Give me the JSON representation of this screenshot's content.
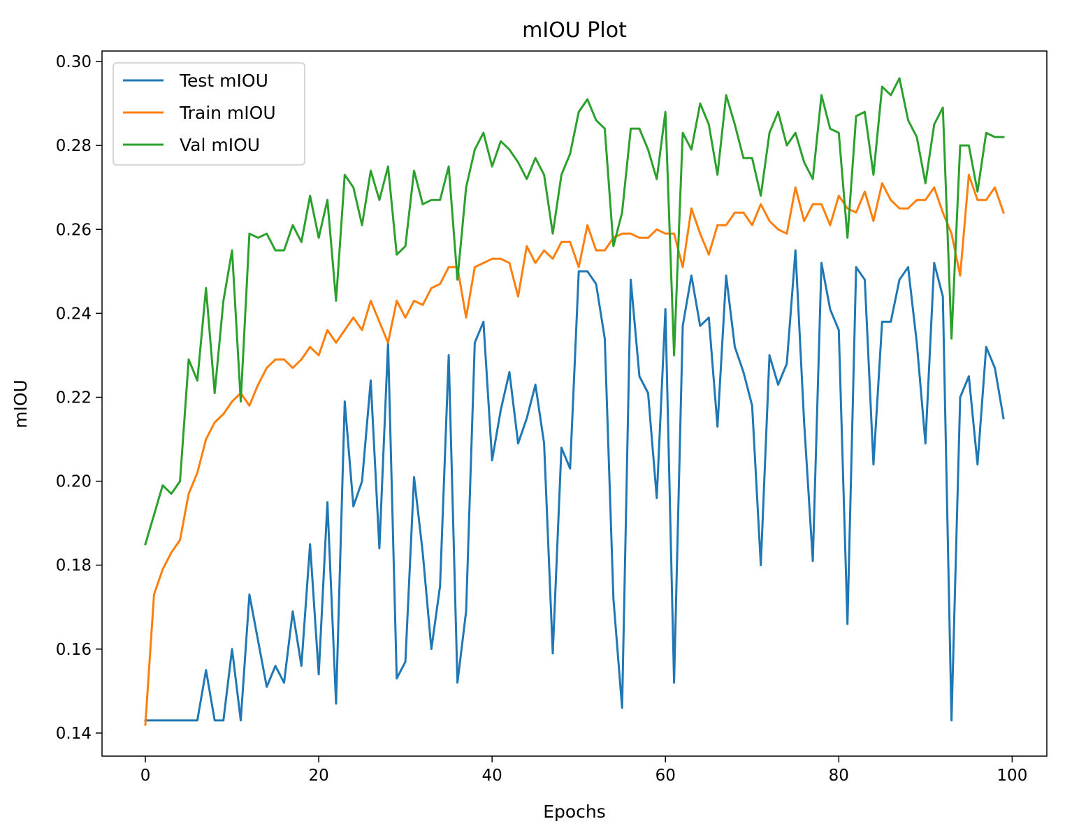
{
  "chart_data": {
    "type": "line",
    "title": "mIOU Plot",
    "xlabel": "Epochs",
    "ylabel": "mIOU",
    "xlim": [
      -5,
      104
    ],
    "ylim": [
      0.1345,
      0.3025
    ],
    "xticks": [
      0,
      20,
      40,
      60,
      80,
      100
    ],
    "yticks": [
      0.14,
      0.16,
      0.18,
      0.2,
      0.22,
      0.24,
      0.26,
      0.28,
      0.3
    ],
    "xtick_labels": [
      "0",
      "20",
      "40",
      "60",
      "80",
      "100"
    ],
    "ytick_labels": [
      "0.14",
      "0.16",
      "0.18",
      "0.20",
      "0.22",
      "0.24",
      "0.26",
      "0.28",
      "0.30"
    ],
    "grid": false,
    "legend": "upper-left",
    "series": [
      {
        "name": "Test mIOU",
        "color": "#1f77b4",
        "values": [
          0.143,
          0.143,
          0.143,
          0.143,
          0.143,
          0.143,
          0.143,
          0.155,
          0.143,
          0.143,
          0.16,
          0.143,
          0.173,
          0.162,
          0.151,
          0.156,
          0.152,
          0.169,
          0.156,
          0.185,
          0.154,
          0.195,
          0.147,
          0.219,
          0.194,
          0.2,
          0.224,
          0.184,
          0.233,
          0.153,
          0.157,
          0.201,
          0.183,
          0.16,
          0.175,
          0.23,
          0.152,
          0.169,
          0.233,
          0.238,
          0.205,
          0.217,
          0.226,
          0.209,
          0.215,
          0.223,
          0.209,
          0.159,
          0.208,
          0.203,
          0.25,
          0.25,
          0.247,
          0.234,
          0.172,
          0.146,
          0.248,
          0.225,
          0.221,
          0.196,
          0.241,
          0.152,
          0.237,
          0.249,
          0.237,
          0.239,
          0.213,
          0.249,
          0.232,
          0.226,
          0.218,
          0.18,
          0.23,
          0.223,
          0.228,
          0.255,
          0.214,
          0.181,
          0.252,
          0.241,
          0.236,
          0.166,
          0.251,
          0.248,
          0.204,
          0.238,
          0.238,
          0.248,
          0.251,
          0.233,
          0.209,
          0.252,
          0.244,
          0.143,
          0.22,
          0.225,
          0.204,
          0.232,
          0.227,
          0.215
        ]
      },
      {
        "name": "Train mIOU",
        "color": "#ff7f0e",
        "values": [
          0.142,
          0.173,
          0.179,
          0.183,
          0.186,
          0.197,
          0.202,
          0.21,
          0.214,
          0.216,
          0.219,
          0.221,
          0.218,
          0.223,
          0.227,
          0.229,
          0.229,
          0.227,
          0.229,
          0.232,
          0.23,
          0.236,
          0.233,
          0.236,
          0.239,
          0.236,
          0.243,
          0.238,
          0.233,
          0.243,
          0.239,
          0.243,
          0.242,
          0.246,
          0.247,
          0.251,
          0.251,
          0.239,
          0.251,
          0.252,
          0.253,
          0.253,
          0.252,
          0.244,
          0.256,
          0.252,
          0.255,
          0.253,
          0.257,
          0.257,
          0.251,
          0.261,
          0.255,
          0.255,
          0.258,
          0.259,
          0.259,
          0.258,
          0.258,
          0.26,
          0.259,
          0.259,
          0.251,
          0.265,
          0.259,
          0.254,
          0.261,
          0.261,
          0.264,
          0.264,
          0.261,
          0.266,
          0.262,
          0.26,
          0.259,
          0.27,
          0.262,
          0.266,
          0.266,
          0.261,
          0.268,
          0.265,
          0.264,
          0.269,
          0.262,
          0.271,
          0.267,
          0.265,
          0.265,
          0.267,
          0.267,
          0.27,
          0.264,
          0.259,
          0.249,
          0.273,
          0.267,
          0.267,
          0.27,
          0.264
        ]
      },
      {
        "name": "Val mIOU",
        "color": "#2ca02c",
        "values": [
          0.185,
          0.192,
          0.199,
          0.197,
          0.2,
          0.229,
          0.224,
          0.246,
          0.221,
          0.243,
          0.255,
          0.219,
          0.259,
          0.258,
          0.259,
          0.255,
          0.255,
          0.261,
          0.257,
          0.268,
          0.258,
          0.267,
          0.243,
          0.273,
          0.27,
          0.261,
          0.274,
          0.267,
          0.275,
          0.254,
          0.256,
          0.274,
          0.266,
          0.267,
          0.267,
          0.275,
          0.248,
          0.27,
          0.279,
          0.283,
          0.275,
          0.281,
          0.279,
          0.276,
          0.272,
          0.277,
          0.273,
          0.259,
          0.273,
          0.278,
          0.288,
          0.291,
          0.286,
          0.284,
          0.256,
          0.264,
          0.284,
          0.284,
          0.279,
          0.272,
          0.288,
          0.23,
          0.283,
          0.279,
          0.29,
          0.285,
          0.273,
          0.292,
          0.285,
          0.277,
          0.277,
          0.268,
          0.283,
          0.288,
          0.28,
          0.283,
          0.276,
          0.272,
          0.292,
          0.284,
          0.283,
          0.258,
          0.287,
          0.288,
          0.273,
          0.294,
          0.292,
          0.296,
          0.286,
          0.282,
          0.271,
          0.285,
          0.289,
          0.234,
          0.28,
          0.28,
          0.269,
          0.283,
          0.282,
          0.282
        ]
      }
    ]
  }
}
